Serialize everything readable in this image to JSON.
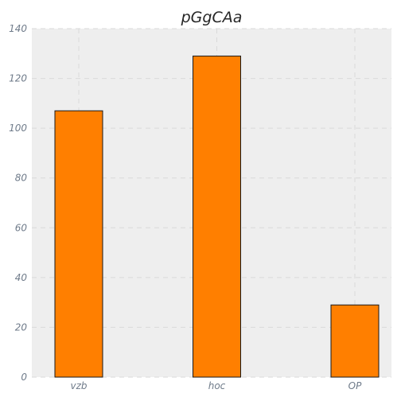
{
  "chart_data": {
    "type": "bar",
    "title": "pGgCAa",
    "categories": [
      "vzb",
      "hoc",
      "OP"
    ],
    "values": [
      107,
      129,
      29
    ],
    "xlabel": "",
    "ylabel": "",
    "ylim": [
      0,
      140
    ],
    "yticks": [
      0,
      20,
      40,
      60,
      80,
      100,
      120,
      140
    ],
    "grid": true,
    "colors": {
      "bar": "#ff7f00",
      "bar_edge": "#1a1a1a",
      "plot_background": "#eeeeee",
      "grid": "#d9d9d9"
    }
  }
}
